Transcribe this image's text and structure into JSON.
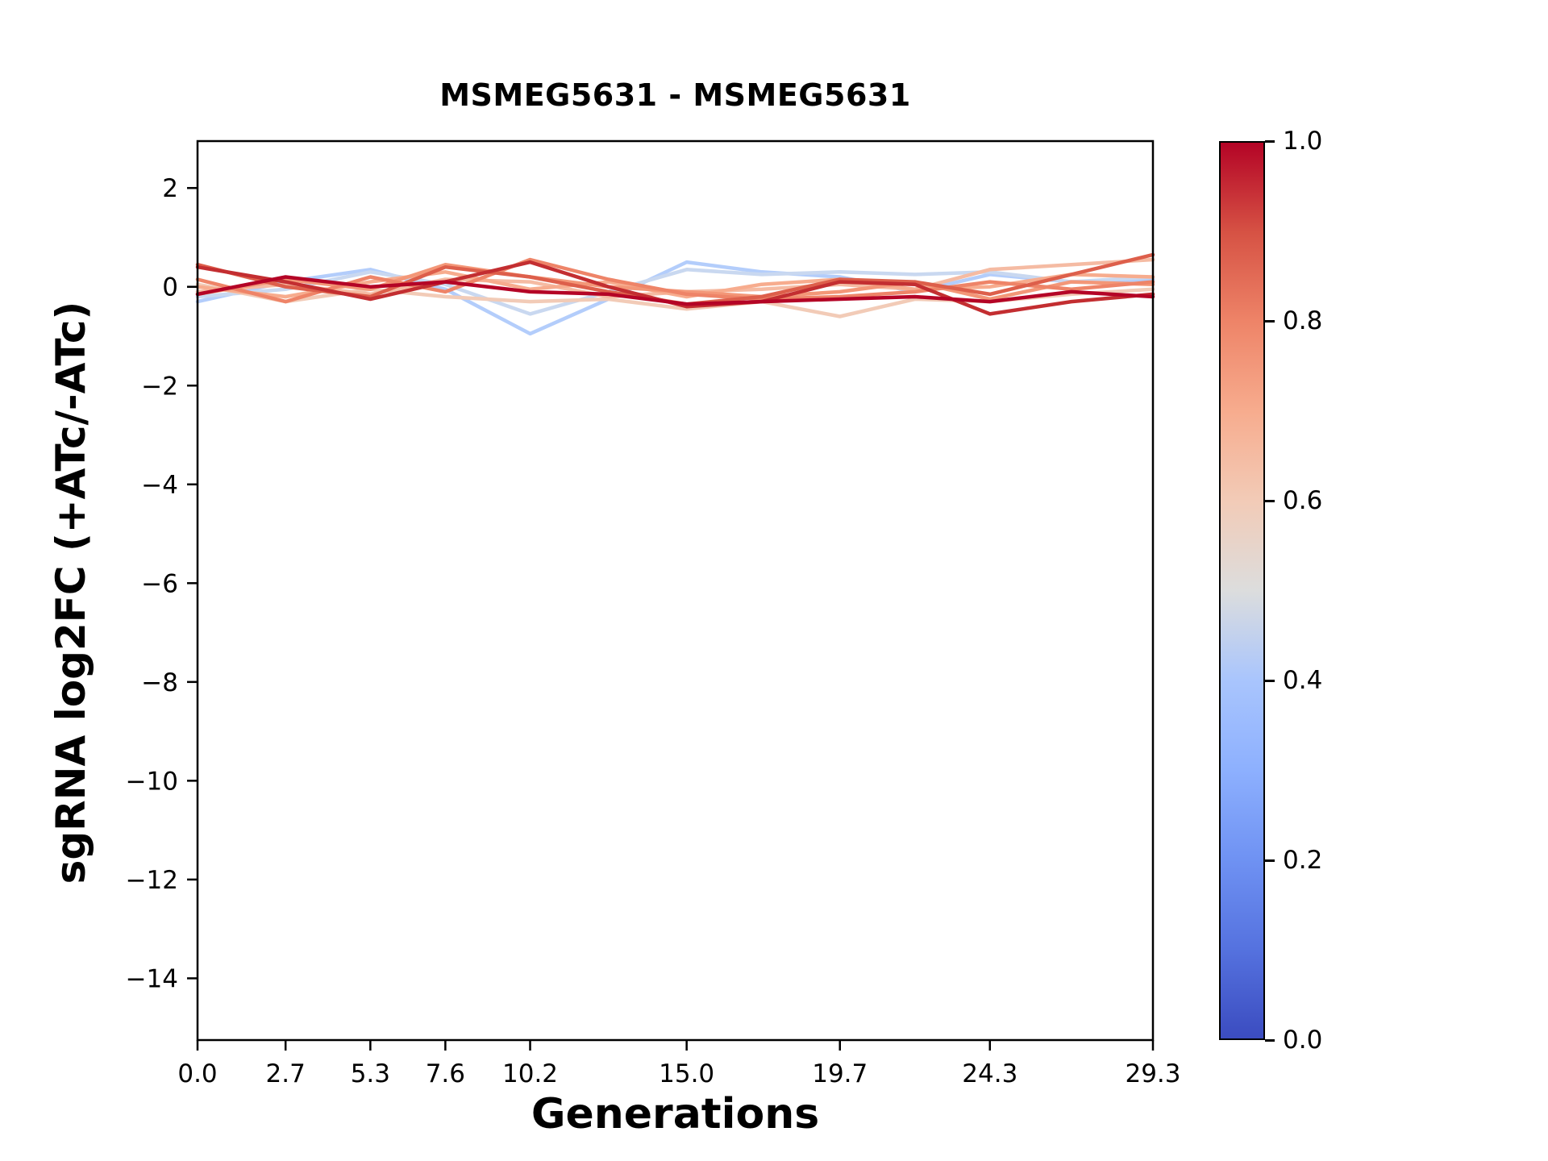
{
  "chart_data": {
    "type": "line",
    "title": "MSMEG5631 - MSMEG5631",
    "xlabel": "Generations",
    "ylabel": "sgRNA log2FC (+ATc/-ATc)",
    "grid": false,
    "legend": "none",
    "xlim": [
      0.0,
      29.3
    ],
    "ylim": [
      -15.25,
      2.95
    ],
    "x_ticks": [
      0.0,
      2.7,
      5.3,
      7.6,
      10.2,
      15.0,
      19.7,
      24.3,
      29.3
    ],
    "x_tick_labels": [
      "0.0",
      "2.7",
      "5.3",
      "7.6",
      "10.2",
      "15.0",
      "19.7",
      "24.3",
      "29.3"
    ],
    "y_ticks": [
      2,
      0,
      -2,
      -4,
      -6,
      -8,
      -10,
      -12,
      -14
    ],
    "y_tick_labels": [
      "2",
      "0",
      "−2",
      "−4",
      "−6",
      "−8",
      "−10",
      "−12",
      "−14"
    ],
    "x": [
      0.0,
      2.7,
      5.3,
      7.6,
      10.2,
      12.6,
      15.0,
      17.3,
      19.7,
      22.0,
      24.3,
      26.8,
      29.3
    ],
    "series": [
      {
        "colormap_value": 0.42,
        "color": "#b3cdfb",
        "values": [
          -0.3,
          0.1,
          0.35,
          -0.05,
          -0.95,
          -0.25,
          0.5,
          0.3,
          0.2,
          -0.1,
          0.25,
          0.1,
          0.15
        ]
      },
      {
        "colormap_value": 0.46,
        "color": "#c9d8f0",
        "values": [
          -0.2,
          -0.05,
          0.3,
          0.05,
          -0.55,
          -0.1,
          0.35,
          0.25,
          0.3,
          0.25,
          0.3,
          0.1,
          0.2
        ]
      },
      {
        "colormap_value": 0.6,
        "color": "#f2cbb7",
        "values": [
          0.05,
          -0.3,
          -0.05,
          -0.2,
          -0.3,
          -0.25,
          -0.45,
          -0.3,
          -0.6,
          -0.25,
          -0.3,
          -0.15,
          -0.05
        ]
      },
      {
        "colormap_value": 0.65,
        "color": "#f5bba3",
        "values": [
          -0.1,
          0.05,
          -0.15,
          0.15,
          0.1,
          -0.2,
          -0.1,
          -0.05,
          0.05,
          -0.05,
          0.35,
          0.45,
          0.55
        ]
      },
      {
        "colormap_value": 0.7,
        "color": "#f7ac8e",
        "values": [
          0.0,
          -0.2,
          0.1,
          0.3,
          -0.05,
          0.1,
          -0.2,
          0.05,
          0.15,
          -0.05,
          0.0,
          0.25,
          0.2
        ]
      },
      {
        "colormap_value": 0.75,
        "color": "#f39778",
        "values": [
          -0.15,
          0.15,
          -0.05,
          0.45,
          0.2,
          0.0,
          -0.1,
          -0.2,
          -0.1,
          0.1,
          -0.25,
          0.1,
          0.05
        ]
      },
      {
        "colormap_value": 0.8,
        "color": "#ee8468",
        "values": [
          0.15,
          -0.3,
          0.2,
          -0.1,
          0.55,
          0.15,
          -0.15,
          -0.25,
          -0.2,
          -0.1,
          0.1,
          -0.05,
          0.1
        ]
      },
      {
        "colormap_value": 0.88,
        "color": "#dd5f4b",
        "values": [
          0.45,
          0.0,
          -0.2,
          0.4,
          0.2,
          -0.1,
          -0.35,
          -0.2,
          0.15,
          0.1,
          -0.15,
          0.25,
          0.65
        ]
      },
      {
        "colormap_value": 0.95,
        "color": "#c32e31",
        "values": [
          0.4,
          0.1,
          -0.25,
          0.1,
          0.5,
          0.0,
          -0.4,
          -0.3,
          0.1,
          0.05,
          -0.55,
          -0.3,
          -0.15
        ]
      },
      {
        "colormap_value": 1.0,
        "color": "#b40426",
        "values": [
          -0.15,
          0.2,
          0.0,
          0.1,
          -0.1,
          -0.15,
          -0.35,
          -0.3,
          -0.25,
          -0.2,
          -0.3,
          -0.1,
          -0.2
        ]
      }
    ],
    "colorbar": {
      "min": 0.0,
      "max": 1.0,
      "tick_labels": [
        "0.0",
        "0.2",
        "0.4",
        "0.6",
        "0.8",
        "1.0"
      ],
      "colormap": "coolwarm",
      "stops": [
        {
          "pos": 0.0,
          "color": "#3b4cc0"
        },
        {
          "pos": 0.1,
          "color": "#5572df"
        },
        {
          "pos": 0.2,
          "color": "#6f92f3"
        },
        {
          "pos": 0.3,
          "color": "#8db0fe"
        },
        {
          "pos": 0.4,
          "color": "#a9c5fd"
        },
        {
          "pos": 0.5,
          "color": "#dcdddd"
        },
        {
          "pos": 0.6,
          "color": "#f2cbb7"
        },
        {
          "pos": 0.7,
          "color": "#f7ac8e"
        },
        {
          "pos": 0.8,
          "color": "#ee8468"
        },
        {
          "pos": 0.9,
          "color": "#d65244"
        },
        {
          "pos": 1.0,
          "color": "#b40426"
        }
      ]
    }
  }
}
